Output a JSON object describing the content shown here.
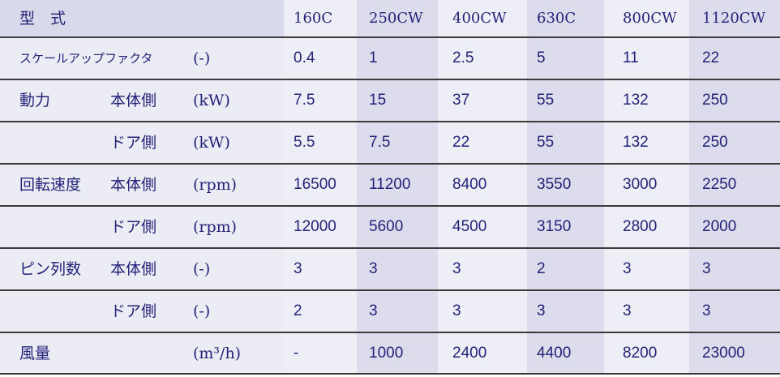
{
  "header": {
    "label": "型　式",
    "models": [
      "160C",
      "250CW",
      "400CW",
      "630C",
      "800CW",
      "1120CW"
    ]
  },
  "rows": [
    {
      "item": "スケールアップファクタ",
      "unit": "(-)",
      "values": [
        "0.4",
        "1",
        "2.5",
        "5",
        "11",
        "22"
      ]
    },
    {
      "item": "動力",
      "part": "本体側",
      "unit": "(kW)",
      "values": [
        "7.5",
        "15",
        "37",
        "55",
        "132",
        "250"
      ]
    },
    {
      "part": "ドア側",
      "unit": "(kW)",
      "values": [
        "5.5",
        "7.5",
        "22",
        "55",
        "132",
        "250"
      ]
    },
    {
      "item": "回転速度",
      "part": "本体側",
      "unit": "(rpm)",
      "values": [
        "16500",
        "11200",
        "8400",
        "3550",
        "3000",
        "2250"
      ]
    },
    {
      "part": "ドア側",
      "unit": "(rpm)",
      "values": [
        "12000",
        "5600",
        "4500",
        "3150",
        "2800",
        "2000"
      ]
    },
    {
      "item": "ピン列数",
      "part": "本体側",
      "unit": "(-)",
      "values": [
        "3",
        "3",
        "3",
        "2",
        "3",
        "3"
      ]
    },
    {
      "part": "ドア側",
      "unit": "(-)",
      "values": [
        "2",
        "3",
        "3",
        "3",
        "3",
        "3"
      ]
    },
    {
      "item": "風量",
      "unit": "(m³/h)",
      "values": [
        "-",
        "1000",
        "2400",
        "4400",
        "8200",
        "23000"
      ]
    }
  ]
}
